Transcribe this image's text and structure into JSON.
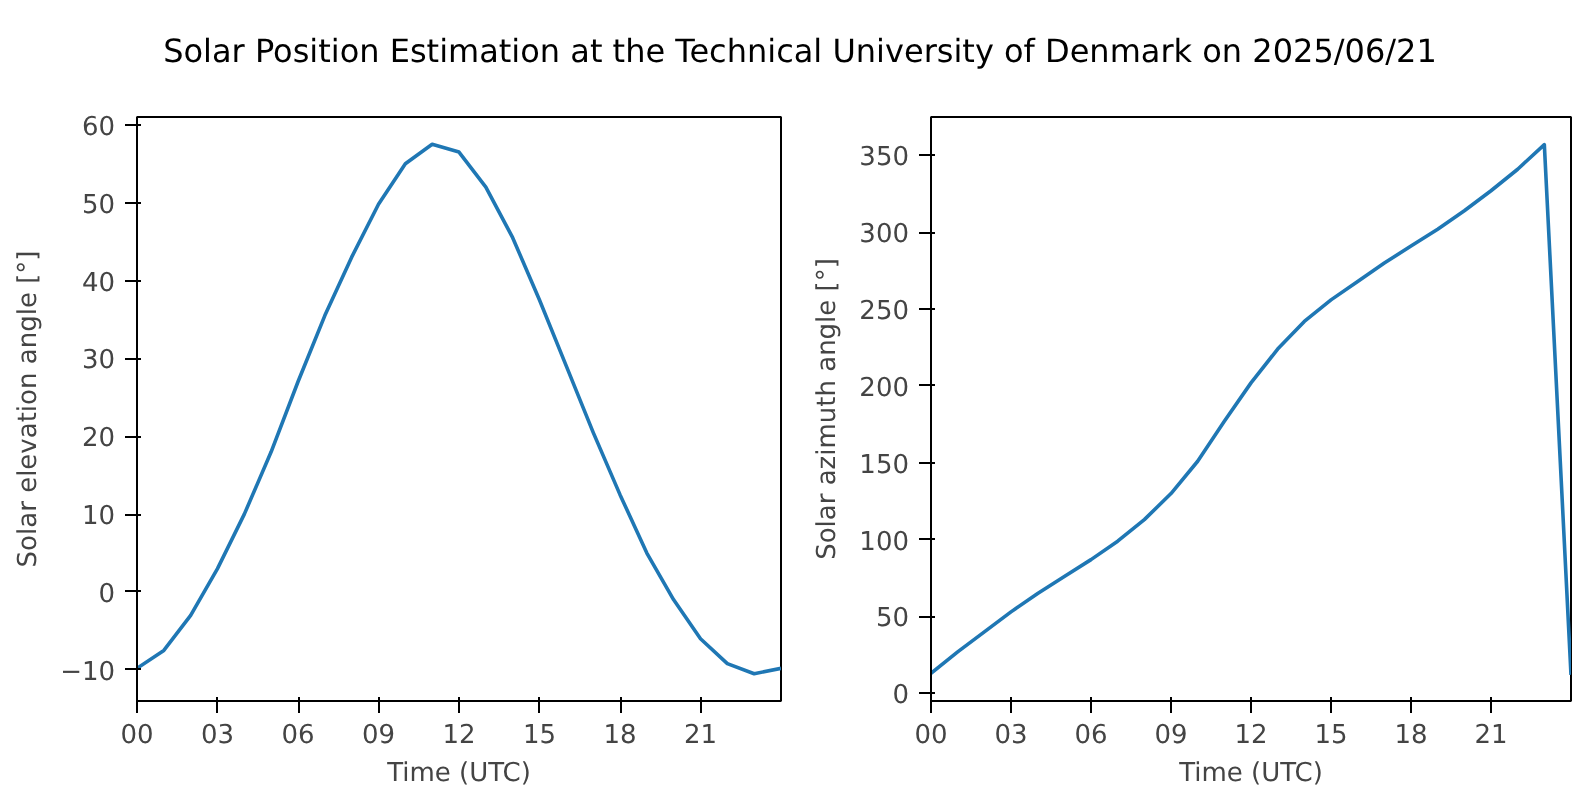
{
  "chart_data": [
    {
      "type": "line",
      "title": "Solar Position Estimation at the Technical University of Denmark on 2025/06/21",
      "xlabel": "Time (UTC)",
      "ylabel": "Solar elevation angle [°]",
      "x": [
        0,
        1,
        2,
        3,
        4,
        5,
        6,
        7,
        8,
        9,
        10,
        11,
        12,
        13,
        14,
        15,
        16,
        17,
        18,
        19,
        20,
        21,
        22,
        23,
        24
      ],
      "series": [
        {
          "color": "#1f77b4",
          "values": [
            -9.8,
            -7.5,
            -3,
            3,
            10,
            18,
            27,
            35.5,
            43,
            49.8,
            55,
            57.5,
            56.5,
            52,
            45.5,
            37.5,
            29,
            20.5,
            12.5,
            5,
            -1,
            -6,
            -9.2,
            -10.5,
            -9.8
          ]
        }
      ],
      "xlim": [
        0,
        24
      ],
      "xticks": [
        {
          "value": 0,
          "label": "00"
        },
        {
          "value": 3,
          "label": "03"
        },
        {
          "value": 6,
          "label": "06"
        },
        {
          "value": 9,
          "label": "09"
        },
        {
          "value": 12,
          "label": "12"
        },
        {
          "value": 15,
          "label": "15"
        },
        {
          "value": 18,
          "label": "18"
        },
        {
          "value": 21,
          "label": "21"
        }
      ],
      "ylim": [
        -14,
        61
      ],
      "yticks": [
        -10,
        0,
        10,
        20,
        30,
        40,
        50,
        60
      ],
      "grid": false
    },
    {
      "type": "line",
      "xlabel": "Time (UTC)",
      "ylabel": "Solar azimuth angle [°]",
      "x": [
        0,
        1,
        2,
        3,
        4,
        5,
        6,
        7,
        8,
        9,
        10,
        11,
        12,
        13,
        14,
        15,
        16,
        17,
        18,
        19,
        20,
        21,
        22,
        23,
        24
      ],
      "series": [
        {
          "color": "#1f77b4",
          "values": [
            13,
            27,
            40,
            53,
            65,
            76,
            87,
            99,
            113,
            130,
            151,
            177,
            202,
            224,
            242,
            256,
            268,
            280,
            291,
            302,
            314,
            327,
            341,
            357,
            12
          ]
        }
      ],
      "xlim": [
        0,
        24
      ],
      "xticks": [
        {
          "value": 0,
          "label": "00"
        },
        {
          "value": 3,
          "label": "03"
        },
        {
          "value": 6,
          "label": "06"
        },
        {
          "value": 9,
          "label": "09"
        },
        {
          "value": 12,
          "label": "12"
        },
        {
          "value": 15,
          "label": "15"
        },
        {
          "value": 18,
          "label": "18"
        },
        {
          "value": 21,
          "label": "21"
        }
      ],
      "ylim": [
        -5,
        375
      ],
      "yticks": [
        0,
        50,
        100,
        150,
        200,
        250,
        300,
        350
      ],
      "grid": false
    }
  ]
}
